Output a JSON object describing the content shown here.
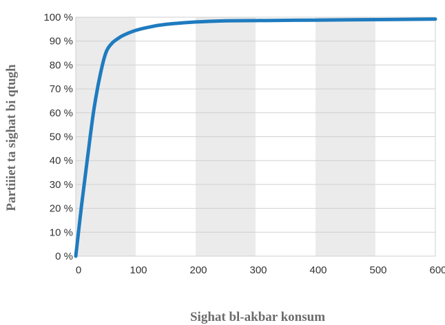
{
  "chart_data": {
    "type": "line",
    "title": "",
    "xlabel": "Sighat bl-akbar konsum",
    "ylabel": "Partiiiet ta sighat bi qtugh",
    "xlim": [
      0,
      600
    ],
    "ylim": [
      0,
      100
    ],
    "x_ticks": [
      "0",
      "100",
      "200",
      "300",
      "400",
      "500",
      "600"
    ],
    "y_ticks": [
      "0 %",
      "10 %",
      "20 %",
      "30 %",
      "40 %",
      "50 %",
      "60 %",
      "70 %",
      "80 %",
      "90 %",
      "100 %"
    ],
    "shaded_bands": [
      [
        0,
        100
      ],
      [
        200,
        300
      ],
      [
        400,
        500
      ]
    ],
    "grid": true,
    "legend": "none",
    "colors": {
      "line": "#1f7bbf",
      "band": "#ebebeb",
      "grid": "#d0d0d0"
    },
    "series": [
      {
        "x": [
          0,
          10,
          20,
          30,
          40,
          50,
          60,
          70,
          80,
          100,
          125,
          150,
          200,
          250,
          300,
          400,
          500,
          600
        ],
        "values": [
          0,
          22,
          42,
          61,
          75,
          85,
          89,
          91,
          92.5,
          94.5,
          96,
          97,
          98,
          98.5,
          98.6,
          98.8,
          99,
          99.2
        ]
      }
    ]
  }
}
